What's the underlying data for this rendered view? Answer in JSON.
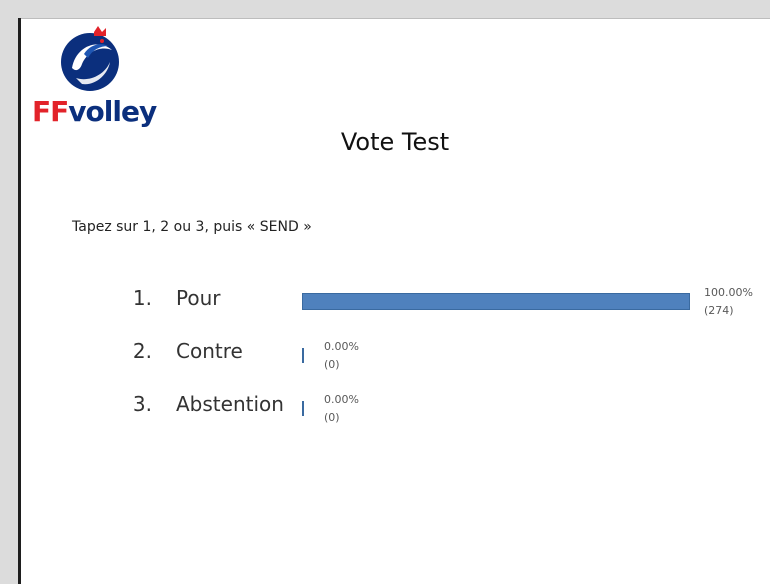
{
  "brand": {
    "logo_text_ff": "FF",
    "logo_text_rest": "volley",
    "colors": {
      "red": "#e2232a",
      "navy": "#0b2f7d"
    }
  },
  "slide": {
    "title": "Vote Test",
    "instruction": "Tapez sur 1, 2 ou 3, puis «  SEND »"
  },
  "chart_data": {
    "type": "bar",
    "orientation": "horizontal",
    "categories": [
      "Pour",
      "Contre",
      "Abstention"
    ],
    "category_numbers": [
      "1.",
      "2.",
      "3."
    ],
    "values": [
      274,
      0,
      0
    ],
    "percent_labels": [
      "100.00%",
      "0.00%",
      "0.00%"
    ],
    "count_labels": [
      "(274)",
      "(0)",
      "(0)"
    ],
    "xlim": [
      0,
      274
    ],
    "grid": false,
    "bar_color": "#4f81bd"
  }
}
